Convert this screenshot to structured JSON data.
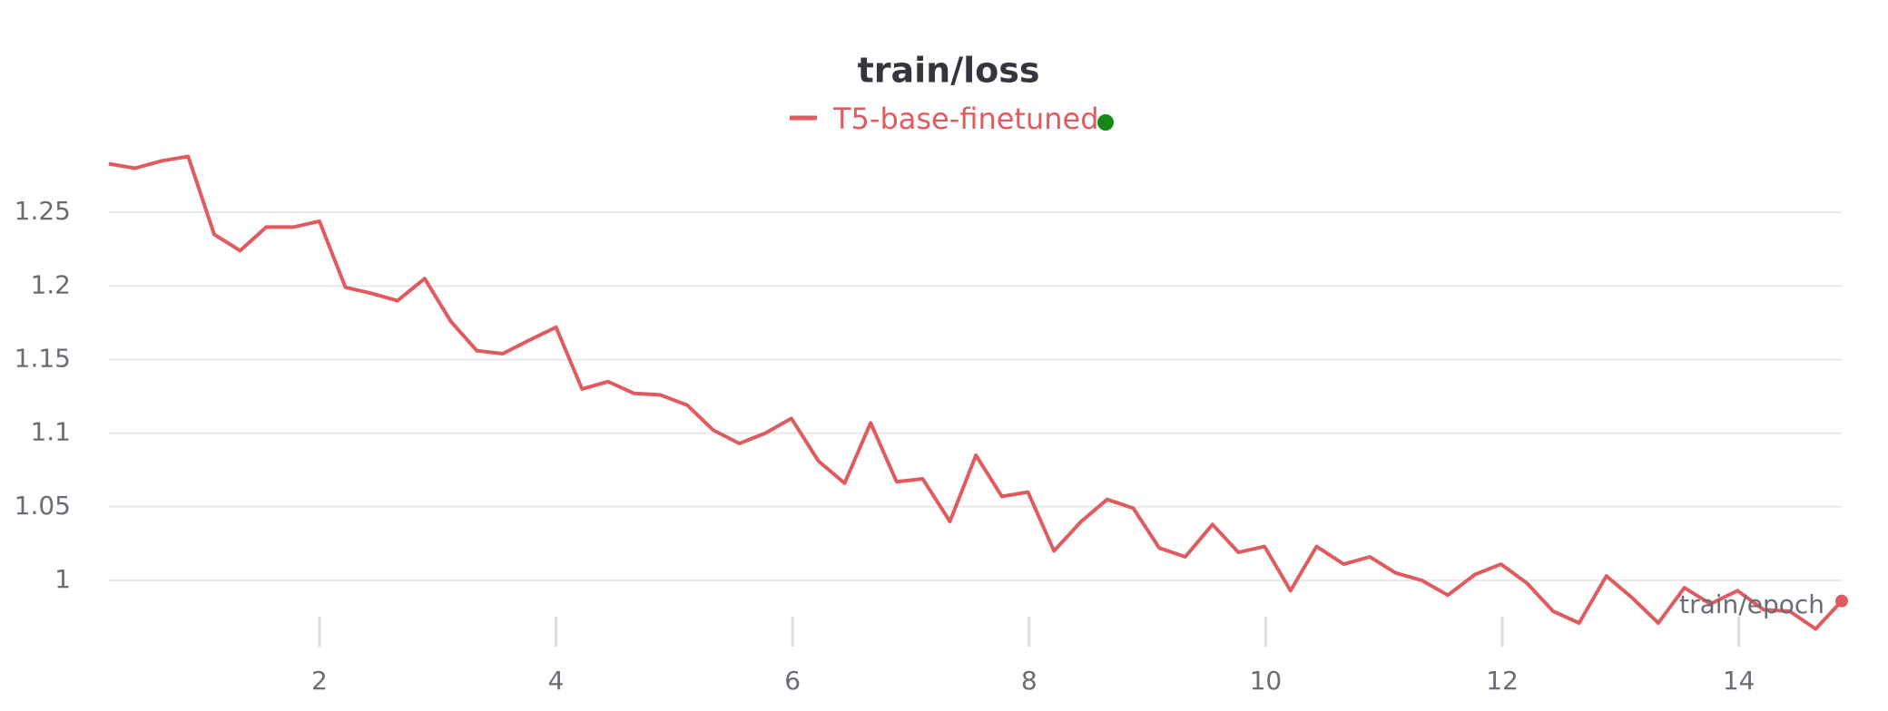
{
  "chart_data": {
    "type": "line",
    "title": "train/loss",
    "xlabel": "train/epoch",
    "x": [
      0.22,
      0.44,
      0.67,
      0.89,
      1.11,
      1.33,
      1.55,
      1.78,
      2.0,
      2.22,
      2.44,
      2.66,
      2.89,
      3.11,
      3.33,
      3.55,
      3.77,
      4.0,
      4.22,
      4.44,
      4.66,
      4.88,
      5.11,
      5.33,
      5.55,
      5.77,
      5.99,
      6.22,
      6.44,
      6.66,
      6.88,
      7.1,
      7.33,
      7.55,
      7.77,
      7.99,
      8.21,
      8.44,
      8.66,
      8.88,
      9.1,
      9.32,
      9.55,
      9.77,
      9.99,
      10.21,
      10.43,
      10.66,
      10.88,
      11.1,
      11.32,
      11.54,
      11.77,
      11.99,
      12.21,
      12.43,
      12.65,
      12.88,
      13.1,
      13.32,
      13.54,
      13.76,
      13.99,
      14.21,
      14.43,
      14.65,
      14.87
    ],
    "series": [
      {
        "name": "T5-base-finetuned",
        "color": "#e05a5e",
        "values": [
          1.283,
          1.28,
          1.285,
          1.288,
          1.235,
          1.224,
          1.24,
          1.24,
          1.244,
          1.199,
          1.195,
          1.19,
          1.205,
          1.176,
          1.156,
          1.154,
          1.163,
          1.172,
          1.13,
          1.135,
          1.127,
          1.126,
          1.119,
          1.102,
          1.093,
          1.1,
          1.11,
          1.081,
          1.066,
          1.107,
          1.067,
          1.069,
          1.04,
          1.085,
          1.057,
          1.06,
          1.02,
          1.04,
          1.055,
          1.049,
          1.022,
          1.016,
          1.038,
          1.019,
          1.023,
          0.993,
          1.023,
          1.011,
          1.016,
          1.005,
          1.0,
          0.99,
          1.004,
          1.011,
          0.998,
          0.979,
          0.971,
          1.003,
          0.988,
          0.971,
          0.995,
          0.984,
          0.993,
          0.98,
          0.979,
          0.967,
          0.986
        ]
      }
    ],
    "xlim": [
      0.22,
      14.87
    ],
    "xticks": [
      2,
      4,
      6,
      8,
      10,
      12,
      14
    ],
    "ylim": [
      0.955,
      1.3
    ],
    "yticks": [
      1,
      1.05,
      1.1,
      1.15,
      1.2,
      1.25
    ],
    "grid": true
  }
}
